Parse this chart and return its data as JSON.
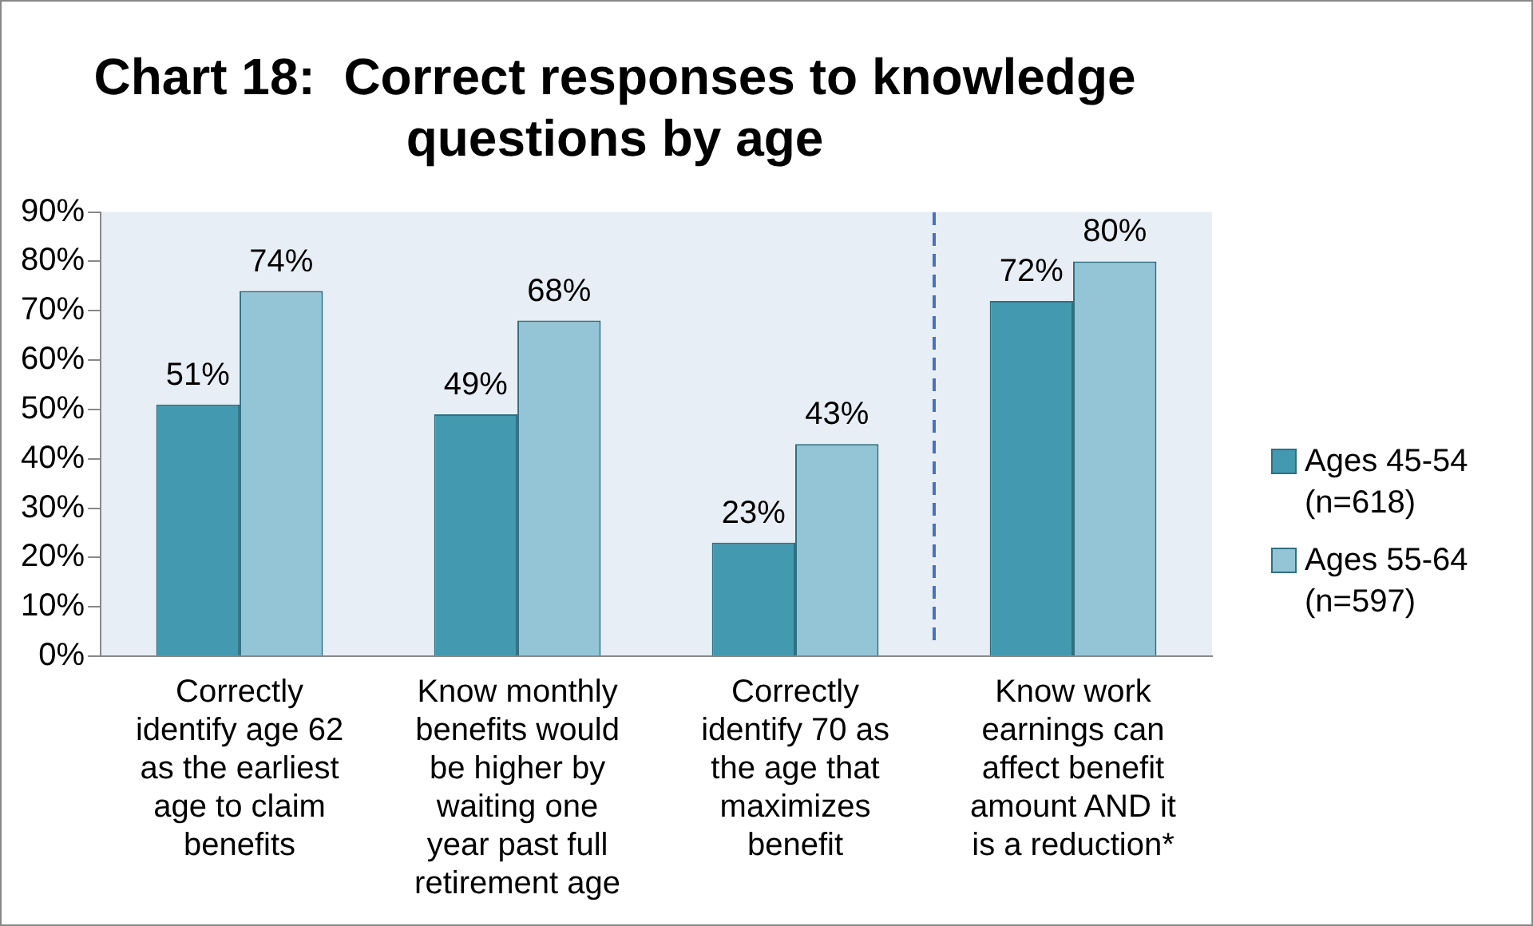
{
  "chart_data": {
    "type": "bar",
    "title": "Chart 18:  Correct responses to knowledge questions by age",
    "categories": [
      "Correctly identify age 62 as the earliest age to claim benefits",
      "Know monthly benefits would be higher by waiting one year past full retirement age",
      "Correctly identify 70 as the age that maximizes benefit",
      "Know work earnings can affect benefit amount AND it is a reduction*"
    ],
    "series": [
      {
        "name": "Ages 45-54 (n=618)",
        "color": "#4399b0",
        "values": [
          51,
          49,
          23,
          72
        ],
        "value_labels": [
          "51%",
          "49%",
          "23%",
          "72%"
        ]
      },
      {
        "name": "Ages 55-64 (n=597)",
        "color": "#93c5d6",
        "values": [
          74,
          68,
          43,
          80
        ],
        "value_labels": [
          "74%",
          "68%",
          "43%",
          "80%"
        ]
      }
    ],
    "ylim": [
      0,
      90
    ],
    "yticks": [
      {
        "value": 0,
        "label": "0%"
      },
      {
        "value": 10,
        "label": "10%"
      },
      {
        "value": 20,
        "label": "20%"
      },
      {
        "value": 30,
        "label": "30%"
      },
      {
        "value": 40,
        "label": "40%"
      },
      {
        "value": 50,
        "label": "50%"
      },
      {
        "value": 60,
        "label": "60%"
      },
      {
        "value": 70,
        "label": "70%"
      },
      {
        "value": 80,
        "label": "80%"
      },
      {
        "value": 90,
        "label": "90%"
      }
    ],
    "grid": false,
    "legend": "right"
  }
}
